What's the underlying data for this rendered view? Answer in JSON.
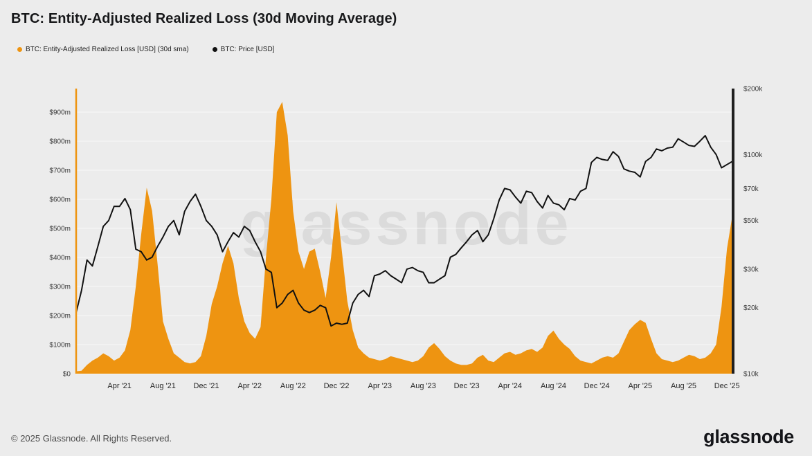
{
  "page": {
    "title": "BTC: Entity-Adjusted Realized Loss (30d Moving Average)",
    "watermark": "glassnode",
    "footer_copyright": "© 2025 Glassnode. All Rights Reserved.",
    "brand_logo_text": "glassnode",
    "background_color": "#ececec"
  },
  "legend": {
    "items": [
      {
        "label": "BTC: Entity-Adjusted Realized Loss [USD] (30d sma)",
        "color": "#ee9411"
      },
      {
        "label": "BTC: Price [USD]",
        "color": "#111111"
      }
    ]
  },
  "chart_data": {
    "type": "area+line",
    "title": "BTC: Entity-Adjusted Realized Loss (30d Moving Average)",
    "grid": "horizontal",
    "legend_position": "top-left",
    "x": {
      "unit": "months since 2020-12-01",
      "start": 0,
      "step": 0.5,
      "count": 122,
      "range_start": "2020-12",
      "range_end": "2025-12"
    },
    "x_tick_labels": [
      {
        "label": "Apr '21",
        "month": 4
      },
      {
        "label": "Aug '21",
        "month": 8
      },
      {
        "label": "Dec '21",
        "month": 12
      },
      {
        "label": "Apr '22",
        "month": 16
      },
      {
        "label": "Aug '22",
        "month": 20
      },
      {
        "label": "Dec '22",
        "month": 24
      },
      {
        "label": "Apr '23",
        "month": 28
      },
      {
        "label": "Aug '23",
        "month": 32
      },
      {
        "label": "Dec '23",
        "month": 36
      },
      {
        "label": "Apr '24",
        "month": 40
      },
      {
        "label": "Aug '24",
        "month": 44
      },
      {
        "label": "Dec '24",
        "month": 48
      },
      {
        "label": "Apr '25",
        "month": 52
      },
      {
        "label": "Aug '25",
        "month": 56
      },
      {
        "label": "Dec '25",
        "month": 60
      }
    ],
    "left_axis": {
      "title": "Realized Loss",
      "unit": "USD millions",
      "scale": "linear",
      "min": 0,
      "max": 900,
      "tick_step": 100,
      "ticks": [
        "$0",
        "$100m",
        "$200m",
        "$300m",
        "$400m",
        "$500m",
        "$600m",
        "$700m",
        "$800m",
        "$900m"
      ],
      "axis_line_color": "#ee9411"
    },
    "right_axis": {
      "title": "BTC Price",
      "unit": "USD",
      "scale": "log",
      "min": 10000,
      "max": 200000,
      "ticks": [
        {
          "label": "$10k",
          "value": 10000
        },
        {
          "label": "$20k",
          "value": 20000
        },
        {
          "label": "$30k",
          "value": 30000
        },
        {
          "label": "$50k",
          "value": 50000
        },
        {
          "label": "$70k",
          "value": 70000
        },
        {
          "label": "$100k",
          "value": 100000
        },
        {
          "label": "$200k",
          "value": 200000
        }
      ],
      "axis_line_color": "#1f1f1f"
    },
    "series": [
      {
        "name": "BTC: Entity-Adjusted Realized Loss [USD] (30d sma)",
        "type": "area",
        "axis": "left",
        "unit": "USD millions",
        "color": "#ee9411",
        "values": [
          8,
          10,
          30,
          45,
          55,
          70,
          60,
          45,
          55,
          80,
          150,
          300,
          480,
          640,
          560,
          380,
          180,
          120,
          70,
          55,
          40,
          35,
          40,
          60,
          130,
          240,
          300,
          380,
          440,
          380,
          260,
          180,
          140,
          120,
          160,
          400,
          600,
          900,
          935,
          820,
          560,
          420,
          360,
          420,
          430,
          350,
          260,
          400,
          590,
          420,
          250,
          150,
          90,
          70,
          55,
          50,
          45,
          50,
          60,
          55,
          50,
          45,
          40,
          45,
          60,
          90,
          105,
          85,
          60,
          45,
          35,
          30,
          30,
          35,
          55,
          65,
          45,
          40,
          55,
          70,
          75,
          65,
          70,
          80,
          85,
          75,
          90,
          130,
          148,
          120,
          100,
          85,
          60,
          45,
          40,
          35,
          45,
          55,
          60,
          55,
          70,
          110,
          150,
          170,
          185,
          175,
          120,
          70,
          50,
          45,
          40,
          45,
          55,
          65,
          60,
          50,
          55,
          70,
          100,
          230,
          430,
          545
        ]
      },
      {
        "name": "BTC: Price [USD]",
        "type": "line",
        "axis": "right",
        "unit": "USD",
        "color": "#111111",
        "values": [
          19000,
          24000,
          33000,
          31000,
          38000,
          47000,
          50000,
          58000,
          58000,
          63000,
          56000,
          37000,
          36000,
          33000,
          34000,
          38000,
          42000,
          47000,
          50000,
          43000,
          55000,
          61000,
          66000,
          58000,
          50000,
          47000,
          43000,
          36000,
          40000,
          44000,
          42000,
          47000,
          45000,
          40000,
          36000,
          30000,
          29000,
          20000,
          21000,
          23000,
          24000,
          21000,
          19500,
          19000,
          19500,
          20500,
          20000,
          16500,
          17000,
          16800,
          17000,
          21000,
          23000,
          24000,
          22500,
          28000,
          28500,
          29500,
          28000,
          27000,
          26000,
          30000,
          30500,
          29500,
          29000,
          26000,
          26000,
          27000,
          28000,
          34000,
          35000,
          37500,
          40000,
          43000,
          45000,
          40000,
          43000,
          51000,
          62000,
          70000,
          69000,
          64000,
          60000,
          68000,
          67000,
          61000,
          57000,
          65000,
          60000,
          59000,
          56000,
          63000,
          62000,
          68000,
          70000,
          92000,
          97000,
          95000,
          94000,
          103000,
          98000,
          86000,
          84000,
          83000,
          79000,
          93000,
          97000,
          106000,
          104000,
          107000,
          108000,
          118000,
          114000,
          110000,
          109000,
          115000,
          122000,
          108000,
          100000,
          87000,
          90000,
          93000
        ]
      }
    ]
  }
}
